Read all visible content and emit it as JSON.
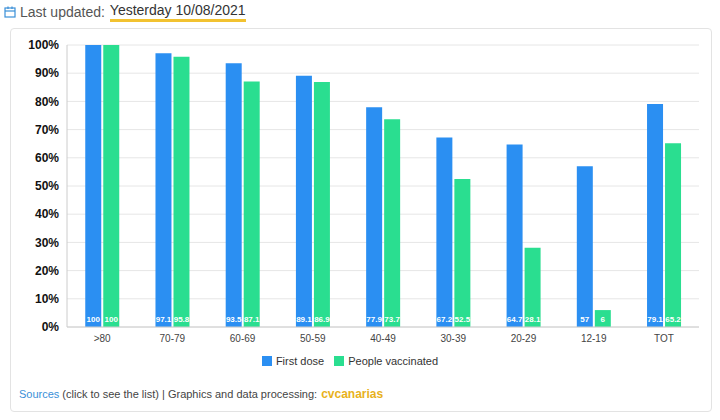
{
  "header": {
    "label": "Last updated:",
    "date": "Yesterday 10/08/2021"
  },
  "footer": {
    "link": "Sources",
    "text": "(click to see the list) | Graphics and data processing:",
    "brand": "cvcanarias"
  },
  "chart_data": {
    "type": "bar",
    "categories": [
      ">80",
      "70-79",
      "60-69",
      "50-59",
      "40-49",
      "30-39",
      "20-29",
      "12-19",
      "TOT"
    ],
    "series": [
      {
        "name": "First dose",
        "color": "#2b8ff2",
        "values": [
          100,
          97.1,
          93.5,
          89.1,
          77.9,
          67.2,
          64.7,
          57,
          79.1
        ]
      },
      {
        "name": "People vaccinated",
        "color": "#2ade90",
        "values": [
          100,
          95.8,
          87.1,
          86.9,
          73.7,
          52.5,
          28.1,
          6,
          65.2
        ]
      }
    ],
    "ylim": [
      0,
      100
    ],
    "yticks": [
      {
        "value": 0,
        "label": "0%"
      },
      {
        "value": 10,
        "label": "10%"
      },
      {
        "value": 20,
        "label": "20%"
      },
      {
        "value": 30,
        "label": "30%"
      },
      {
        "value": 40,
        "label": "40%"
      },
      {
        "value": 50,
        "label": "50%"
      },
      {
        "value": 60,
        "label": "60%"
      },
      {
        "value": 70,
        "label": "70%"
      },
      {
        "value": 80,
        "label": "80%"
      },
      {
        "value": 90,
        "label": "90%"
      },
      {
        "value": 100,
        "label": "100%"
      }
    ],
    "grid": true,
    "legend": "bottom",
    "data_labels": true
  }
}
